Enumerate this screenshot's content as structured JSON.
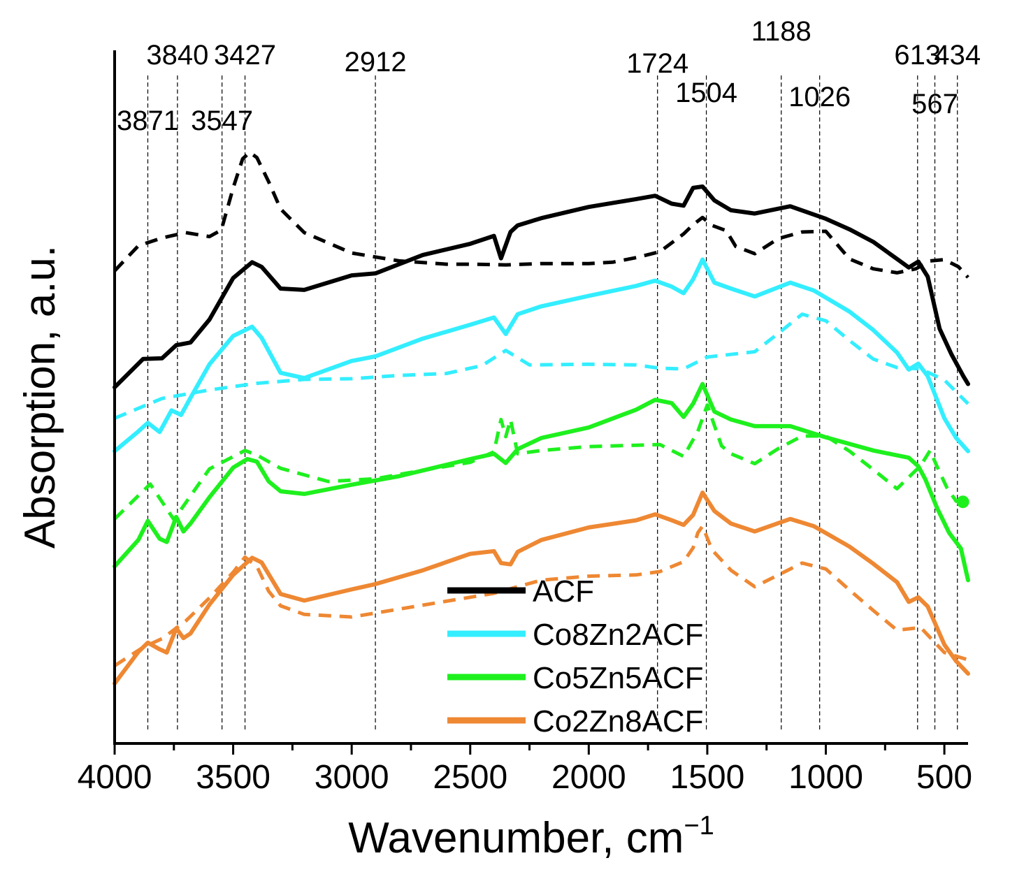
{
  "chart_data": {
    "type": "line",
    "xlabel": "Wavenumber, cm",
    "xlabel_superscript": "−1",
    "ylabel": "Absorption, a.u.",
    "xlim": [
      4000,
      400
    ],
    "ylim": [
      0,
      10
    ],
    "x_reversed": true,
    "y_ticks_shown": false,
    "x_ticks": [
      4000,
      3500,
      3000,
      2500,
      2000,
      1500,
      1000,
      500
    ],
    "x_tick_labels": [
      "4000",
      "3500",
      "3000",
      "2500",
      "2000",
      "1500",
      "1000",
      "500"
    ],
    "peak_markers": [
      {
        "label": "3871",
        "x": 3860,
        "row": 2
      },
      {
        "label": "3840",
        "x": 3735,
        "row": 0
      },
      {
        "label": "3547",
        "x": 3547,
        "row": 2
      },
      {
        "label": "3427",
        "x": 3450,
        "row": 0
      },
      {
        "label": "2912",
        "x": 2900,
        "row": 1
      },
      {
        "label": "1724",
        "x": 1710,
        "row": 1
      },
      {
        "label": "1504",
        "x": 1504,
        "row": 2
      },
      {
        "label": "1188",
        "x": 1188,
        "row": 0
      },
      {
        "label": "1026",
        "x": 1026,
        "row": 2
      },
      {
        "label": "613",
        "x": 613,
        "row": 0
      },
      {
        "label": "567",
        "x": 540,
        "row": 2
      },
      {
        "label": "434",
        "x": 445,
        "row": 0
      }
    ],
    "legend": {
      "position": "bottom-center",
      "entries": [
        "ACF",
        "Co8Zn2ACF",
        "Co5Zn5ACF",
        "Co2Zn8ACF"
      ]
    },
    "series": [
      {
        "name": "ACF",
        "color": "#000000",
        "style": "solid",
        "x": [
          4000,
          3880,
          3800,
          3740,
          3680,
          3600,
          3500,
          3420,
          3380,
          3300,
          3200,
          3000,
          2900,
          2700,
          2500,
          2400,
          2370,
          2330,
          2300,
          2200,
          2000,
          1800,
          1720,
          1650,
          1600,
          1560,
          1520,
          1470,
          1400,
          1300,
          1150,
          1000,
          900,
          800,
          700,
          650,
          610,
          570,
          520,
          470,
          420,
          400
        ],
        "y": [
          5.05,
          5.48,
          5.49,
          5.69,
          5.73,
          6.08,
          6.71,
          6.95,
          6.88,
          6.55,
          6.53,
          6.75,
          6.78,
          7.06,
          7.23,
          7.35,
          7.01,
          7.41,
          7.51,
          7.62,
          7.79,
          7.91,
          7.96,
          7.84,
          7.81,
          8.08,
          8.1,
          7.89,
          7.74,
          7.69,
          7.8,
          7.61,
          7.45,
          7.26,
          7.0,
          6.87,
          6.96,
          6.73,
          5.94,
          5.55,
          5.22,
          5.1
        ]
      },
      {
        "name": "ACF (dashed)",
        "color": "#000000",
        "style": "dashed",
        "x": [
          4000,
          3900,
          3800,
          3700,
          3600,
          3550,
          3500,
          3460,
          3430,
          3400,
          3350,
          3300,
          3200,
          3000,
          2800,
          2600,
          2500,
          2350,
          2200,
          2000,
          1900,
          1800,
          1700,
          1600,
          1560,
          1520,
          1480,
          1420,
          1380,
          1300,
          1200,
          1100,
          1000,
          900,
          800,
          700,
          620,
          560,
          500,
          440,
          400
        ],
        "y": [
          6.82,
          7.2,
          7.32,
          7.4,
          7.34,
          7.44,
          8.08,
          8.52,
          8.62,
          8.54,
          8.17,
          7.76,
          7.4,
          7.09,
          6.97,
          6.92,
          6.92,
          6.91,
          6.93,
          6.93,
          6.95,
          7.02,
          7.11,
          7.38,
          7.52,
          7.63,
          7.51,
          7.43,
          7.19,
          7.08,
          7.31,
          7.41,
          7.42,
          7.0,
          6.85,
          6.79,
          6.85,
          6.97,
          6.99,
          6.88,
          6.72
        ]
      },
      {
        "name": "Co8Zn2ACF",
        "color": "#33eeff",
        "style": "solid",
        "x": [
          4000,
          3900,
          3860,
          3810,
          3760,
          3720,
          3680,
          3600,
          3500,
          3420,
          3380,
          3300,
          3200,
          3000,
          2900,
          2700,
          2500,
          2400,
          2350,
          2300,
          2200,
          2000,
          1800,
          1720,
          1650,
          1600,
          1560,
          1520,
          1470,
          1400,
          1300,
          1150,
          1050,
          900,
          800,
          700,
          650,
          610,
          570,
          500,
          450,
          400
        ],
        "y": [
          4.08,
          4.38,
          4.51,
          4.37,
          4.7,
          4.63,
          4.89,
          5.4,
          5.83,
          5.97,
          5.8,
          5.27,
          5.19,
          5.45,
          5.52,
          5.79,
          6.0,
          6.11,
          5.86,
          6.16,
          6.28,
          6.44,
          6.59,
          6.67,
          6.58,
          6.48,
          6.69,
          6.99,
          6.64,
          6.55,
          6.43,
          6.64,
          6.52,
          6.2,
          5.92,
          5.58,
          5.32,
          5.41,
          5.22,
          4.58,
          4.28,
          4.08
        ]
      },
      {
        "name": "Co8Zn2ACF (dashed)",
        "color": "#33eeff",
        "style": "dashed",
        "x": [
          4000,
          3800,
          3600,
          3400,
          3200,
          3000,
          2800,
          2600,
          2450,
          2350,
          2250,
          2000,
          1800,
          1700,
          1600,
          1500,
          1400,
          1300,
          1200,
          1100,
          1000,
          900,
          800,
          700,
          600,
          500,
          400
        ],
        "y": [
          4.58,
          4.88,
          5.01,
          5.11,
          5.17,
          5.18,
          5.23,
          5.26,
          5.38,
          5.61,
          5.39,
          5.4,
          5.39,
          5.34,
          5.33,
          5.51,
          5.55,
          5.59,
          5.87,
          6.16,
          6.06,
          5.76,
          5.48,
          5.35,
          5.33,
          5.16,
          4.8
        ]
      },
      {
        "name": "Co5Zn5ACF",
        "color": "#1ef01e",
        "style": "solid",
        "x": [
          4000,
          3900,
          3860,
          3810,
          3780,
          3740,
          3710,
          3680,
          3600,
          3500,
          3440,
          3400,
          3350,
          3300,
          3200,
          3000,
          2800,
          2500,
          2400,
          2350,
          2300,
          2200,
          2000,
          1800,
          1720,
          1650,
          1600,
          1560,
          1520,
          1470,
          1400,
          1300,
          1150,
          1000,
          800,
          650,
          610,
          580,
          530,
          480,
          430,
          400
        ],
        "y": [
          2.33,
          2.73,
          3.02,
          2.75,
          2.7,
          3.08,
          2.86,
          2.98,
          3.38,
          3.83,
          3.96,
          3.92,
          3.62,
          3.47,
          3.43,
          3.57,
          3.7,
          3.96,
          4.04,
          3.9,
          4.11,
          4.28,
          4.44,
          4.71,
          4.86,
          4.81,
          4.6,
          4.8,
          5.1,
          4.68,
          4.56,
          4.46,
          4.46,
          4.29,
          4.09,
          3.98,
          3.85,
          3.65,
          3.21,
          2.84,
          2.6,
          2.12
        ]
      },
      {
        "name": "Co5Zn5ACF (dashed)",
        "color": "#1ef01e",
        "style": "dashed",
        "x": [
          4000,
          3850,
          3750,
          3600,
          3450,
          3400,
          3300,
          3100,
          2900,
          2700,
          2500,
          2400,
          2370,
          2350,
          2330,
          2300,
          2200,
          2000,
          1800,
          1700,
          1600,
          1540,
          1500,
          1440,
          1400,
          1300,
          1200,
          1100,
          1000,
          900,
          800,
          700,
          600,
          560,
          530,
          490,
          450,
          410
        ],
        "y": [
          3.05,
          3.58,
          3.04,
          3.81,
          4.09,
          4.02,
          3.82,
          3.62,
          3.66,
          3.79,
          3.91,
          4.07,
          4.56,
          4.3,
          4.56,
          4.04,
          4.09,
          4.15,
          4.17,
          4.18,
          4.0,
          4.38,
          4.78,
          4.16,
          4.04,
          3.89,
          4.12,
          4.31,
          4.31,
          4.08,
          3.8,
          3.51,
          3.86,
          4.09,
          3.84,
          3.53,
          3.32,
          3.31
        ]
      },
      {
        "name": "Co2Zn8ACF",
        "color": "#ee8833",
        "style": "solid",
        "x": [
          4000,
          3900,
          3860,
          3810,
          3780,
          3740,
          3710,
          3680,
          3600,
          3500,
          3420,
          3380,
          3300,
          3200,
          3000,
          2900,
          2700,
          2500,
          2400,
          2370,
          2330,
          2300,
          2200,
          2000,
          1800,
          1720,
          1650,
          1600,
          1560,
          1520,
          1470,
          1400,
          1300,
          1150,
          1050,
          900,
          800,
          700,
          650,
          610,
          570,
          500,
          450,
          400
        ],
        "y": [
          0.55,
          1.03,
          1.17,
          1.07,
          1.02,
          1.39,
          1.24,
          1.31,
          1.75,
          2.2,
          2.46,
          2.39,
          1.91,
          1.81,
          1.98,
          2.06,
          2.27,
          2.52,
          2.56,
          2.38,
          2.36,
          2.55,
          2.73,
          2.92,
          3.03,
          3.12,
          3.03,
          2.96,
          3.11,
          3.45,
          3.17,
          2.98,
          2.86,
          3.05,
          2.94,
          2.63,
          2.37,
          2.09,
          1.79,
          1.86,
          1.72,
          1.14,
          0.89,
          0.7
        ]
      },
      {
        "name": "Co2Zn8ACF (dashed)",
        "color": "#ee8833",
        "style": "dashed",
        "x": [
          4000,
          3880,
          3800,
          3700,
          3600,
          3500,
          3450,
          3400,
          3350,
          3300,
          3200,
          3000,
          2800,
          2600,
          2400,
          2300,
          2200,
          2000,
          1800,
          1700,
          1600,
          1560,
          1540,
          1520,
          1480,
          1400,
          1300,
          1200,
          1100,
          1000,
          900,
          800,
          700,
          600,
          500,
          400
        ],
        "y": [
          0.82,
          1.1,
          1.23,
          1.5,
          1.85,
          2.24,
          2.47,
          2.33,
          1.95,
          1.73,
          1.6,
          1.56,
          1.68,
          1.8,
          1.92,
          2.02,
          2.12,
          2.18,
          2.2,
          2.25,
          2.4,
          2.61,
          2.84,
          2.94,
          2.58,
          2.27,
          2.02,
          2.2,
          2.38,
          2.29,
          1.97,
          1.66,
          1.36,
          1.4,
          1.02,
          0.91
        ]
      }
    ]
  }
}
